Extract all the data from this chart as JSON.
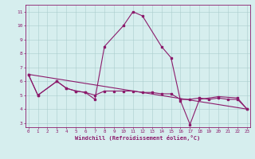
{
  "line1_x": [
    0,
    1,
    3,
    4,
    5,
    6,
    7,
    8,
    10,
    11,
    12,
    14,
    15,
    16,
    17,
    18,
    20,
    22,
    23
  ],
  "line1_y": [
    6.5,
    5.0,
    6.0,
    5.5,
    5.3,
    5.2,
    4.7,
    8.5,
    10.0,
    11.0,
    10.7,
    8.5,
    7.7,
    4.6,
    2.9,
    4.7,
    4.9,
    4.8,
    4.0
  ],
  "line2_x": [
    0,
    1,
    3,
    4,
    5,
    6,
    7,
    8,
    9,
    10,
    11,
    12,
    13,
    14,
    15,
    16,
    17,
    18,
    19,
    20,
    21,
    22,
    23
  ],
  "line2_y": [
    6.5,
    5.0,
    6.0,
    5.5,
    5.3,
    5.2,
    5.0,
    5.3,
    5.3,
    5.3,
    5.3,
    5.2,
    5.2,
    5.1,
    5.1,
    4.7,
    4.7,
    4.8,
    4.7,
    4.8,
    4.7,
    4.7,
    4.0
  ],
  "line3_x": [
    0,
    23
  ],
  "line3_y": [
    6.5,
    4.0
  ],
  "xlim": [
    -0.3,
    23.3
  ],
  "ylim": [
    2.7,
    11.5
  ],
  "yticks": [
    3,
    4,
    5,
    6,
    7,
    8,
    9,
    10,
    11
  ],
  "xticks": [
    0,
    1,
    2,
    3,
    4,
    5,
    6,
    7,
    8,
    9,
    10,
    11,
    12,
    13,
    14,
    15,
    16,
    17,
    18,
    19,
    20,
    21,
    22,
    23
  ],
  "xlabel": "Windchill (Refroidissement éolien,°C)",
  "line_color": "#8B1A6B",
  "bg_color": "#D6EEEE",
  "grid_color": "#AACCCC",
  "spine_color": "#8B1A6B",
  "text_color": "#8B1A6B"
}
